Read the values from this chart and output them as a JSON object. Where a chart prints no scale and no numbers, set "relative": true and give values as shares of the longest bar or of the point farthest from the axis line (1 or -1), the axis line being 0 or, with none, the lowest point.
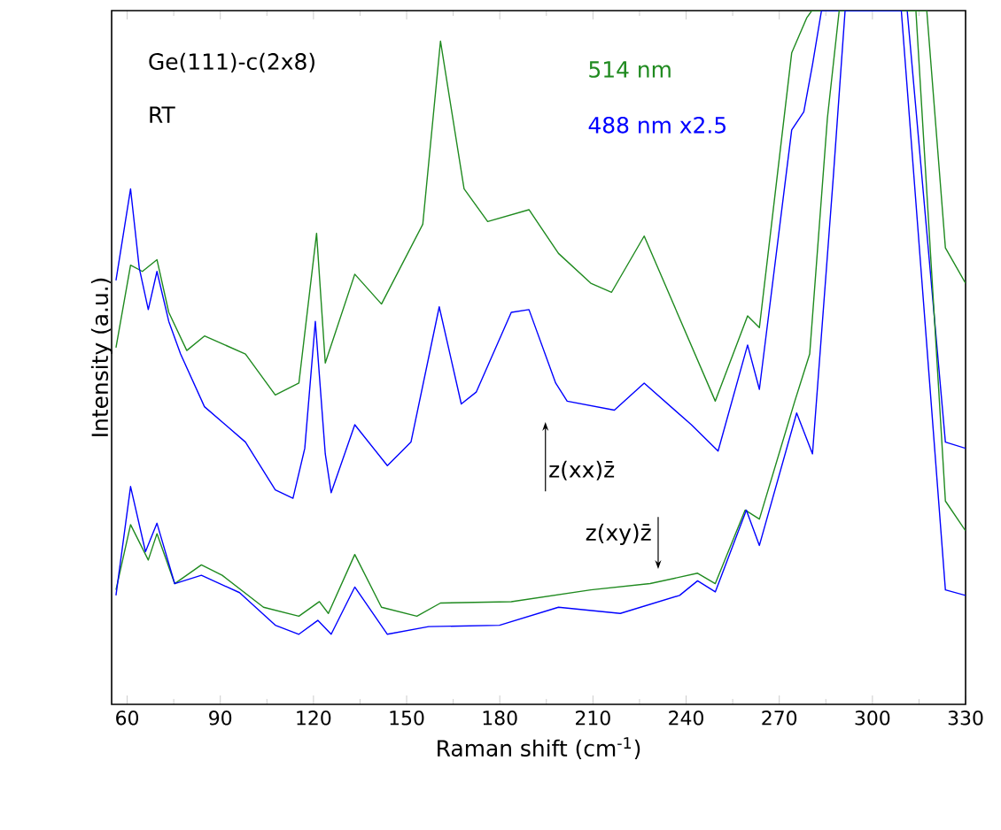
{
  "chart_data": {
    "type": "line",
    "relative": true,
    "xlabel": "Raman shift (cm$^{-1}$)",
    "ylabel": "Intensity (a.u.)",
    "xlim": [
      55,
      330
    ],
    "xticks": [
      60,
      90,
      120,
      150,
      180,
      210,
      240,
      270,
      300,
      330
    ],
    "legend": "top",
    "annotations": [
      "Ge(111)-c(2x8)",
      "RT",
      "z(xx)z̄",
      "z(xy)z̄"
    ],
    "series": [
      {
        "name": "514 nm",
        "color": "#1f8a1f",
        "x": [
          56.4,
          61.1,
          64.9,
          69.6,
          73.4,
          79.2,
          84.9,
          98.1,
          107.7,
          115.3,
          121.0,
          123.8,
          133.3,
          141.9,
          155.2,
          160.9,
          168.5,
          176.1,
          189.4,
          198.9,
          209.3,
          216.0,
          226.5,
          249.4,
          259.8,
          263.6,
          274.0,
          278.9,
          280.5,
          317.5,
          323.5,
          330
        ],
        "values": [
          0.514,
          0.633,
          0.624,
          0.641,
          0.565,
          0.51,
          0.531,
          0.505,
          0.446,
          0.463,
          0.679,
          0.492,
          0.62,
          0.577,
          0.692,
          0.956,
          0.743,
          0.696,
          0.713,
          0.65,
          0.607,
          0.594,
          0.675,
          0.437,
          0.56,
          0.543,
          0.939,
          0.99,
          1.0,
          1.0,
          0.658,
          0.607
        ]
      },
      {
        "name": "488 nm x2.5",
        "color": "#0000ff",
        "x": [
          56.4,
          61.1,
          63.9,
          66.8,
          69.6,
          73.4,
          77.2,
          84.9,
          98.1,
          107.7,
          113.4,
          117.2,
          120.6,
          123.8,
          125.7,
          133.3,
          143.8,
          151.4,
          160.5,
          167.6,
          172.4,
          183.7,
          189.4,
          198.0,
          201.7,
          216.9,
          226.5,
          241.7,
          250.3,
          259.8,
          263.6,
          274.0,
          277.9,
          280.7,
          283.6,
          311.2,
          323.5,
          330
        ],
        "values": [
          0.611,
          0.743,
          0.629,
          0.569,
          0.624,
          0.552,
          0.505,
          0.429,
          0.378,
          0.309,
          0.297,
          0.369,
          0.552,
          0.361,
          0.305,
          0.403,
          0.344,
          0.378,
          0.573,
          0.433,
          0.45,
          0.565,
          0.569,
          0.463,
          0.437,
          0.424,
          0.463,
          0.403,
          0.365,
          0.518,
          0.454,
          0.828,
          0.854,
          0.922,
          1.0,
          1.0,
          0.378,
          0.369
        ]
      },
      {
        "color": "#1f8a1f",
        "x": [
          56.4,
          61.1,
          66.8,
          69.6,
          75.3,
          83.9,
          90.6,
          103.9,
          115.3,
          121.9,
          124.8,
          133.3,
          141.9,
          153.3,
          160.9,
          183.7,
          209.3,
          228.4,
          243.7,
          249.4,
          259.0,
          263.6,
          275.0,
          279.8,
          285.5,
          289.3,
          314.0,
          323.5,
          330
        ],
        "values": [
          0.165,
          0.259,
          0.208,
          0.246,
          0.174,
          0.201,
          0.186,
          0.14,
          0.127,
          0.148,
          0.131,
          0.216,
          0.14,
          0.127,
          0.146,
          0.148,
          0.165,
          0.174,
          0.189,
          0.174,
          0.28,
          0.267,
          0.437,
          0.505,
          0.845,
          1.0,
          1.0,
          0.293,
          0.25
        ]
      },
      {
        "color": "#0000ff",
        "x": [
          56.4,
          61.1,
          65.9,
          69.6,
          75.3,
          83.9,
          96.2,
          107.7,
          115.3,
          121.4,
          125.7,
          133.3,
          143.8,
          157.1,
          179.9,
          198.9,
          218.8,
          237.9,
          243.7,
          249.4,
          259.4,
          263.6,
          275.6,
          280.7,
          287.4,
          291.2,
          309.3,
          323.5,
          330
        ],
        "values": [
          0.157,
          0.314,
          0.22,
          0.261,
          0.174,
          0.186,
          0.161,
          0.114,
          0.101,
          0.121,
          0.101,
          0.169,
          0.101,
          0.112,
          0.114,
          0.14,
          0.131,
          0.157,
          0.178,
          0.162,
          0.28,
          0.229,
          0.42,
          0.361,
          0.76,
          1.0,
          1.0,
          0.165,
          0.157
        ]
      }
    ]
  }
}
